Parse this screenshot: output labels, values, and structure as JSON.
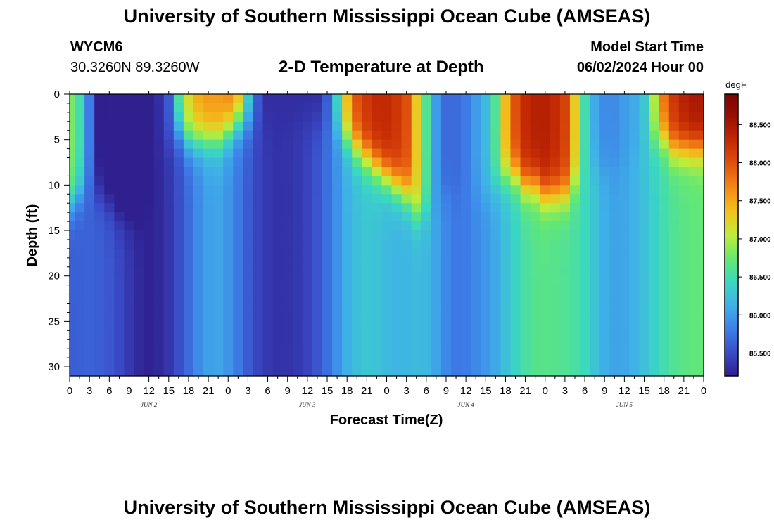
{
  "header": {
    "title": "University of Southern Mississippi Ocean Cube (AMSEAS)",
    "station_id": "WYCM6",
    "station_coords": "30.3260N  89.3260W",
    "plot_title": "2-D Temperature at Depth",
    "model_start_label": "Model Start Time",
    "model_start_value": "06/02/2024 Hour 00"
  },
  "footer": {
    "title": "University of Southern Mississippi Ocean Cube (AMSEAS)"
  },
  "chart_data": {
    "type": "heatmap",
    "title": "2-D Temperature at Depth",
    "xlabel": "Forecast Time(Z)",
    "ylabel": "Depth (ft)",
    "x_tick_labels": [
      "0",
      "3",
      "6",
      "9",
      "12",
      "15",
      "18",
      "21",
      "0",
      "3",
      "6",
      "9",
      "12",
      "15",
      "18",
      "21",
      "0",
      "3",
      "6",
      "9",
      "12",
      "15",
      "18",
      "21",
      "0",
      "3",
      "6",
      "9",
      "12",
      "15",
      "18",
      "21",
      "0"
    ],
    "x_hours_range": [
      0,
      96
    ],
    "day_labels": [
      {
        "label": "JUN 2",
        "hour": 12
      },
      {
        "label": "JUN 3",
        "hour": 36
      },
      {
        "label": "JUN 4",
        "hour": 60
      },
      {
        "label": "JUN 5",
        "hour": 84
      }
    ],
    "y_ticks": [
      0,
      5,
      10,
      15,
      20,
      25,
      30
    ],
    "ylim": [
      0,
      31
    ],
    "colorbar": {
      "units": "degF",
      "range": [
        85.2,
        88.9
      ],
      "tick_values": [
        85.5,
        86.0,
        86.5,
        87.0,
        87.5,
        88.0,
        88.5
      ],
      "tick_labels": [
        "85.500",
        "86.000",
        "86.500",
        "87.000",
        "87.500",
        "88.000",
        "88.500"
      ],
      "colors": [
        "#2f1f8f",
        "#3a4cc8",
        "#3d7fe8",
        "#3fb0e8",
        "#3bd8c0",
        "#66e870",
        "#c0ec3a",
        "#f2c21c",
        "#f58a17",
        "#e2530e",
        "#c52b04",
        "#9c1003",
        "#7a0403"
      ]
    },
    "temperature_profiles": {
      "columns_hours": [
        0,
        1.5,
        3,
        4.5,
        6,
        7.5,
        9,
        10.5,
        12,
        13.5,
        15,
        16.5,
        18,
        19.5,
        21,
        22.5,
        24,
        25.5,
        27,
        28.5,
        30,
        31.5,
        33,
        34.5,
        36,
        37.5,
        39,
        40.5,
        42,
        43.5,
        45,
        46.5,
        48,
        49.5,
        51,
        52.5,
        54,
        55.5,
        57,
        58.5,
        60,
        61.5,
        63,
        64.5,
        66,
        67.5,
        69,
        70.5,
        72,
        73.5,
        75,
        76.5,
        78,
        79.5,
        81,
        82.5,
        84,
        85.5,
        87,
        88.5,
        90,
        91.5,
        93,
        94.5,
        96
      ],
      "deep_degF": [
        85.62,
        85.63,
        85.64,
        85.62,
        85.57,
        85.48,
        85.37,
        85.27,
        85.22,
        85.26,
        85.36,
        85.52,
        85.7,
        85.89,
        86.03,
        86.05,
        85.95,
        85.78,
        85.6,
        85.46,
        85.37,
        85.33,
        85.34,
        85.38,
        85.45,
        85.56,
        85.72,
        85.93,
        86.12,
        86.24,
        86.29,
        86.27,
        86.2,
        86.16,
        86.17,
        86.2,
        86.18,
        86.05,
        85.88,
        85.78,
        85.8,
        85.88,
        85.97,
        86.08,
        86.24,
        86.4,
        86.55,
        86.63,
        86.65,
        86.63,
        86.6,
        86.55,
        86.45,
        86.28,
        86.12,
        86.05,
        86.07,
        86.15,
        86.25,
        86.38,
        86.5,
        86.6,
        86.66,
        86.7,
        86.72
      ],
      "surface_degF": [
        86.8,
        86.5,
        85.8,
        85.2,
        85.1,
        85.0,
        84.9,
        85.0,
        85.2,
        85.3,
        85.6,
        86.6,
        87.2,
        87.5,
        87.6,
        87.6,
        87.7,
        87.5,
        86.4,
        85.6,
        85.3,
        85.3,
        85.3,
        85.3,
        85.3,
        85.3,
        85.6,
        86.4,
        87.4,
        88.0,
        88.2,
        88.3,
        88.3,
        88.2,
        88.0,
        87.3,
        86.6,
        86.0,
        85.7,
        85.7,
        85.8,
        86.0,
        86.2,
        86.6,
        87.4,
        88.0,
        88.3,
        88.4,
        88.4,
        88.3,
        88.1,
        87.3,
        86.5,
        86.1,
        85.9,
        85.9,
        86.0,
        86.1,
        86.3,
        87.0,
        87.8,
        88.2,
        88.4,
        88.5,
        88.5
      ],
      "mixed_layer_depth_ft": [
        12,
        11,
        10,
        11,
        12,
        13,
        13,
        13,
        12,
        6,
        5,
        4,
        5,
        5,
        5,
        5,
        4,
        3,
        3,
        3,
        3,
        3,
        3,
        3,
        3,
        3,
        3,
        4,
        5,
        6,
        7,
        8,
        9,
        10,
        11,
        13,
        13,
        12,
        11,
        11,
        11,
        11,
        11,
        10,
        9,
        9,
        10,
        10,
        11,
        11,
        11,
        10,
        9,
        8,
        8,
        8,
        8,
        7,
        6,
        5,
        5,
        6,
        6,
        6,
        6
      ]
    }
  }
}
